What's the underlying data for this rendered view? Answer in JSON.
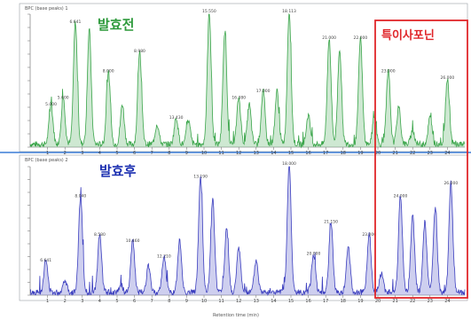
{
  "chart_data": [
    {
      "type": "line",
      "title": "발효전",
      "header": "BPC (base peaks) 1",
      "color": "#3aa54a",
      "xlim": [
        0,
        25
      ],
      "ylim": [
        0,
        1.0
      ],
      "x_ticks": [
        1,
        2,
        3,
        4,
        5,
        6,
        7,
        8,
        9,
        10,
        11,
        12,
        13,
        14,
        15,
        16,
        17,
        18,
        19,
        20,
        21,
        22,
        23,
        24
      ],
      "peaks": [
        {
          "x": 1.2,
          "y": 0.3,
          "label": "5.000"
        },
        {
          "x": 1.9,
          "y": 0.35,
          "label": "5.600"
        },
        {
          "x": 2.6,
          "y": 0.92,
          "label": "6.641"
        },
        {
          "x": 3.4,
          "y": 0.86,
          "label": ""
        },
        {
          "x": 4.5,
          "y": 0.55,
          "label": "8.000"
        },
        {
          "x": 5.3,
          "y": 0.3,
          "label": ""
        },
        {
          "x": 6.3,
          "y": 0.7,
          "label": "8.980"
        },
        {
          "x": 7.3,
          "y": 0.15,
          "label": ""
        },
        {
          "x": 8.4,
          "y": 0.2,
          "label": "13.430"
        },
        {
          "x": 9.1,
          "y": 0.18,
          "label": ""
        },
        {
          "x": 10.3,
          "y": 1.0,
          "label": "15.550"
        },
        {
          "x": 11.2,
          "y": 0.85,
          "label": ""
        },
        {
          "x": 12.0,
          "y": 0.35,
          "label": "16.380"
        },
        {
          "x": 12.6,
          "y": 0.3,
          "label": ""
        },
        {
          "x": 13.4,
          "y": 0.4,
          "label": "17.000"
        },
        {
          "x": 14.2,
          "y": 0.4,
          "label": ""
        },
        {
          "x": 14.9,
          "y": 1.0,
          "label": "18.113"
        },
        {
          "x": 16.0,
          "y": 0.22,
          "label": ""
        },
        {
          "x": 17.2,
          "y": 0.8,
          "label": "21.000"
        },
        {
          "x": 17.8,
          "y": 0.72,
          "label": ""
        },
        {
          "x": 19.0,
          "y": 0.8,
          "label": "22.000"
        },
        {
          "x": 19.8,
          "y": 0.2,
          "label": ""
        },
        {
          "x": 20.6,
          "y": 0.55,
          "label": "23.000"
        },
        {
          "x": 21.2,
          "y": 0.28,
          "label": ""
        },
        {
          "x": 22.0,
          "y": 0.1,
          "label": ""
        },
        {
          "x": 23.0,
          "y": 0.2,
          "label": ""
        },
        {
          "x": 24.0,
          "y": 0.5,
          "label": "26.000"
        }
      ]
    },
    {
      "type": "line",
      "title": "발효후",
      "header": "BPC (base peaks) 2",
      "color": "#3c3fbf",
      "xlim": [
        0,
        25
      ],
      "ylim": [
        0,
        1.0
      ],
      "x_ticks": [
        1,
        2,
        3,
        4,
        5,
        6,
        7,
        8,
        9,
        10,
        11,
        12,
        13,
        14,
        15,
        16,
        17,
        18,
        19,
        20,
        21,
        22,
        23,
        24
      ],
      "peaks": [
        {
          "x": 0.9,
          "y": 0.25,
          "label": "6.641"
        },
        {
          "x": 2.0,
          "y": 0.1,
          "label": ""
        },
        {
          "x": 2.9,
          "y": 0.75,
          "label": "8.040"
        },
        {
          "x": 4.0,
          "y": 0.45,
          "label": "8.580"
        },
        {
          "x": 5.2,
          "y": 0.05,
          "label": ""
        },
        {
          "x": 5.9,
          "y": 0.4,
          "label": "10.460"
        },
        {
          "x": 6.8,
          "y": 0.2,
          "label": ""
        },
        {
          "x": 7.7,
          "y": 0.28,
          "label": "12.210"
        },
        {
          "x": 8.6,
          "y": 0.4,
          "label": ""
        },
        {
          "x": 9.8,
          "y": 0.9,
          "label": "13.190"
        },
        {
          "x": 10.5,
          "y": 0.72,
          "label": ""
        },
        {
          "x": 11.3,
          "y": 0.5,
          "label": ""
        },
        {
          "x": 12.0,
          "y": 0.35,
          "label": ""
        },
        {
          "x": 13.0,
          "y": 0.25,
          "label": ""
        },
        {
          "x": 14.9,
          "y": 1.0,
          "label": "18.000"
        },
        {
          "x": 16.3,
          "y": 0.3,
          "label": "20.000"
        },
        {
          "x": 17.3,
          "y": 0.55,
          "label": "21.150"
        },
        {
          "x": 18.3,
          "y": 0.35,
          "label": ""
        },
        {
          "x": 19.5,
          "y": 0.45,
          "label": "23.000"
        },
        {
          "x": 20.2,
          "y": 0.15,
          "label": ""
        },
        {
          "x": 21.3,
          "y": 0.75,
          "label": "24.000"
        },
        {
          "x": 22.0,
          "y": 0.6,
          "label": ""
        },
        {
          "x": 22.7,
          "y": 0.55,
          "label": ""
        },
        {
          "x": 23.3,
          "y": 0.65,
          "label": ""
        },
        {
          "x": 24.2,
          "y": 0.85,
          "label": "26.000"
        }
      ]
    }
  ],
  "highlight": {
    "label": "특이사포닌",
    "color": "#e0262a"
  },
  "xlabel": "Retention time (min)"
}
